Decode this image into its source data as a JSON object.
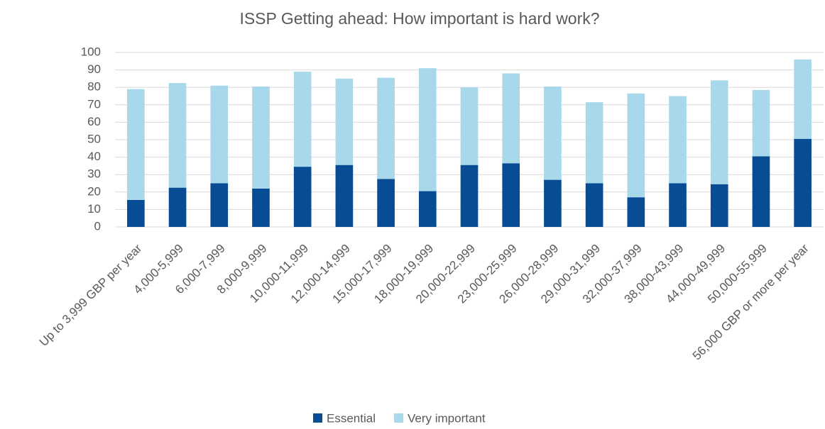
{
  "chart_data": {
    "type": "stacked_bar",
    "title": "ISSP Getting ahead: How important is hard work?",
    "categories": [
      "Up to 3,999 GBP per year",
      "4,000-5,999",
      "6,000-7,999",
      "8,000-9,999",
      "10,000-11,999",
      "12,000-14,999",
      "15,000-17,999",
      "18,000-19,999",
      "20,000-22,999",
      "23,000-25,999",
      "26,000-28,999",
      "29,000-31,999",
      "32,000-37,999",
      "38,000-43,999",
      "44,000-49,999",
      "50,000-55,999",
      "56,000 GBP or more per year"
    ],
    "series": [
      {
        "name": "Essential",
        "color": "#084c94",
        "values": [
          15.5,
          22.5,
          25,
          22,
          34.5,
          35.5,
          27.5,
          20.5,
          35.5,
          36.5,
          27,
          25,
          17,
          25,
          24.5,
          40.5,
          50.5
        ]
      },
      {
        "name": "Very important",
        "color": "#a9d8ed",
        "values": [
          63.5,
          60,
          56,
          58.5,
          54.5,
          49.5,
          58,
          70.5,
          44.5,
          51.5,
          53.5,
          46.5,
          59.5,
          50,
          59.5,
          38,
          45.5
        ]
      }
    ],
    "ylim": [
      0,
      100
    ],
    "yticks": [
      0,
      10,
      20,
      30,
      40,
      50,
      60,
      70,
      80,
      90,
      100
    ],
    "grid": true,
    "legend": "bottom"
  }
}
